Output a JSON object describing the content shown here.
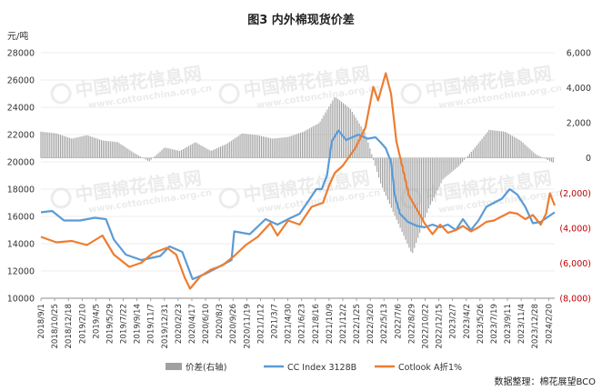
{
  "chart_data": {
    "type": "line",
    "title": "图3 内外棉现货价差",
    "ylabel_left": "元/吨",
    "ylim_left": [
      10000,
      28000
    ],
    "yticks_left": [
      "28000",
      "26000",
      "24000",
      "22000",
      "20000",
      "18000",
      "16000",
      "14000",
      "12000",
      "10000"
    ],
    "ylim_right": [
      -8000,
      6000
    ],
    "yticks_right": [
      "6,000",
      "4,000",
      "2,000",
      "0",
      "(2,000)",
      "(4,000)",
      "(6,000)",
      "(8,000)"
    ],
    "x_start": "2018-09-01",
    "x_end": "2024-03-15",
    "x_ticks": [
      "2018/9/1",
      "2018/10/25",
      "2018/12/18",
      "2019/2/10",
      "2019/4/5",
      "2019/5/29",
      "2019/7/22",
      "2019/9/14",
      "2019/11/7",
      "2019/12/31",
      "2020/2/23",
      "2020/4/17",
      "2020/6/10",
      "2020/8/3",
      "2020/9/26",
      "2020/11/19",
      "2021/1/12",
      "2021/3/7",
      "2021/4/30",
      "2021/6/23",
      "2021/8/16",
      "2021/10/9",
      "2021/12/2",
      "2022/1/25",
      "2022/3/20",
      "2022/5/13",
      "2022/7/6",
      "2022/8/29",
      "2022/10/22",
      "2022/12/15",
      "2023/2/7",
      "2023/4/2",
      "2023/5/26",
      "2023/7/19",
      "2023/9/11",
      "2023/11/4",
      "2023/12/28",
      "2024/2/20"
    ],
    "series": [
      {
        "name": "价差(右轴)",
        "type": "bar",
        "axis": "right",
        "color": "#a0a0a0",
        "x": [
          "2018-09-01",
          "2018-11-01",
          "2019-01-01",
          "2019-03-01",
          "2019-05-01",
          "2019-07-01",
          "2019-09-01",
          "2019-11-01",
          "2020-01-01",
          "2020-03-01",
          "2020-05-01",
          "2020-07-01",
          "2020-09-01",
          "2020-11-01",
          "2021-01-01",
          "2021-03-01",
          "2021-05-01",
          "2021-07-01",
          "2021-09-01",
          "2021-11-01",
          "2022-01-01",
          "2022-03-01",
          "2022-05-01",
          "2022-07-01",
          "2022-09-01",
          "2022-11-01",
          "2023-01-01",
          "2023-03-01",
          "2023-05-01",
          "2023-07-01",
          "2023-09-01",
          "2023-11-01",
          "2024-01-01",
          "2024-03-15"
        ],
        "values": [
          1500,
          1400,
          1100,
          1300,
          1000,
          900,
          300,
          -200,
          600,
          400,
          900,
          400,
          800,
          1400,
          1300,
          1100,
          1200,
          1500,
          2000,
          3500,
          2800,
          1400,
          -1500,
          -3500,
          -5500,
          -3000,
          -1200,
          -500,
          500,
          1600,
          1500,
          1000,
          200,
          -300
        ]
      },
      {
        "name": "CC Index 3128B",
        "type": "line",
        "axis": "left",
        "color": "#5b9bd5",
        "x": [
          "2018-09-01",
          "2018-10-15",
          "2018-12-01",
          "2019-02-01",
          "2019-04-01",
          "2019-05-15",
          "2019-06-15",
          "2019-08-01",
          "2019-10-01",
          "2019-12-15",
          "2020-01-20",
          "2020-03-10",
          "2020-04-20",
          "2020-06-10",
          "2020-08-01",
          "2020-09-20",
          "2020-10-01",
          "2020-12-01",
          "2021-02-01",
          "2021-03-20",
          "2021-05-01",
          "2021-06-15",
          "2021-07-15",
          "2021-08-20",
          "2021-09-10",
          "2021-10-01",
          "2021-10-20",
          "2021-11-15",
          "2021-12-15",
          "2022-02-01",
          "2022-03-10",
          "2022-04-10",
          "2022-05-01",
          "2022-05-20",
          "2022-06-10",
          "2022-06-25",
          "2022-07-15",
          "2022-08-15",
          "2022-09-20",
          "2022-10-20",
          "2022-11-20",
          "2022-12-20",
          "2023-01-20",
          "2023-02-20",
          "2023-03-20",
          "2023-04-20",
          "2023-05-20",
          "2023-06-20",
          "2023-07-20",
          "2023-08-20",
          "2023-09-20",
          "2023-10-20",
          "2023-11-20",
          "2023-12-20",
          "2024-01-20",
          "2024-02-20",
          "2024-03-15"
        ],
        "values": [
          16300,
          16400,
          15700,
          15700,
          15900,
          15800,
          14300,
          13200,
          12800,
          13100,
          13800,
          13400,
          11400,
          11800,
          12300,
          12800,
          14900,
          14700,
          15800,
          15400,
          15800,
          16200,
          17000,
          18000,
          18000,
          19000,
          21500,
          22300,
          21600,
          22000,
          21700,
          21800,
          21400,
          21000,
          20000,
          17500,
          16200,
          15600,
          15300,
          15200,
          15400,
          15200,
          15400,
          15000,
          15800,
          15000,
          15700,
          16700,
          17000,
          17300,
          18000,
          17600,
          16700,
          15500,
          15600,
          16000,
          16300
        ]
      },
      {
        "name": "Cotlook A折1%",
        "type": "line",
        "axis": "left",
        "color": "#ed7d31",
        "x": [
          "2018-09-01",
          "2018-11-01",
          "2019-01-01",
          "2019-03-01",
          "2019-05-01",
          "2019-06-15",
          "2019-08-15",
          "2019-10-01",
          "2019-11-15",
          "2020-01-10",
          "2020-02-15",
          "2020-03-20",
          "2020-04-10",
          "2020-05-20",
          "2020-07-01",
          "2020-08-15",
          "2020-10-01",
          "2020-11-15",
          "2021-01-01",
          "2021-02-20",
          "2021-03-20",
          "2021-05-01",
          "2021-06-15",
          "2021-08-01",
          "2021-09-15",
          "2021-10-10",
          "2021-11-01",
          "2021-12-01",
          "2022-01-20",
          "2022-03-01",
          "2022-04-01",
          "2022-04-20",
          "2022-05-20",
          "2022-06-10",
          "2022-07-01",
          "2022-07-20",
          "2022-08-20",
          "2022-09-20",
          "2022-10-20",
          "2022-11-20",
          "2022-12-20",
          "2023-01-20",
          "2023-02-20",
          "2023-03-20",
          "2023-04-20",
          "2023-05-20",
          "2023-06-20",
          "2023-07-20",
          "2023-08-20",
          "2023-09-20",
          "2023-10-20",
          "2023-11-20",
          "2023-12-20",
          "2024-01-20",
          "2024-02-10",
          "2024-02-25",
          "2024-03-15"
        ],
        "values": [
          14500,
          14100,
          14200,
          13900,
          14600,
          13200,
          12300,
          12600,
          13300,
          13700,
          13200,
          11500,
          10700,
          11600,
          12100,
          12400,
          13100,
          13900,
          14500,
          15500,
          14600,
          15700,
          15400,
          16700,
          17000,
          18300,
          19200,
          19700,
          21000,
          22500,
          25500,
          24500,
          26500,
          25000,
          21500,
          20000,
          17500,
          16500,
          15500,
          14700,
          15400,
          14800,
          15000,
          15300,
          14900,
          15200,
          15600,
          15700,
          16000,
          16300,
          16200,
          15800,
          16100,
          15400,
          16200,
          17700,
          16800
        ]
      }
    ],
    "legend_position": "bottom",
    "source": "数据整理：棉花展望BCO",
    "watermark": {
      "brand": "中国棉花信息网",
      "url": "www.cottonchina.org.cn"
    }
  }
}
